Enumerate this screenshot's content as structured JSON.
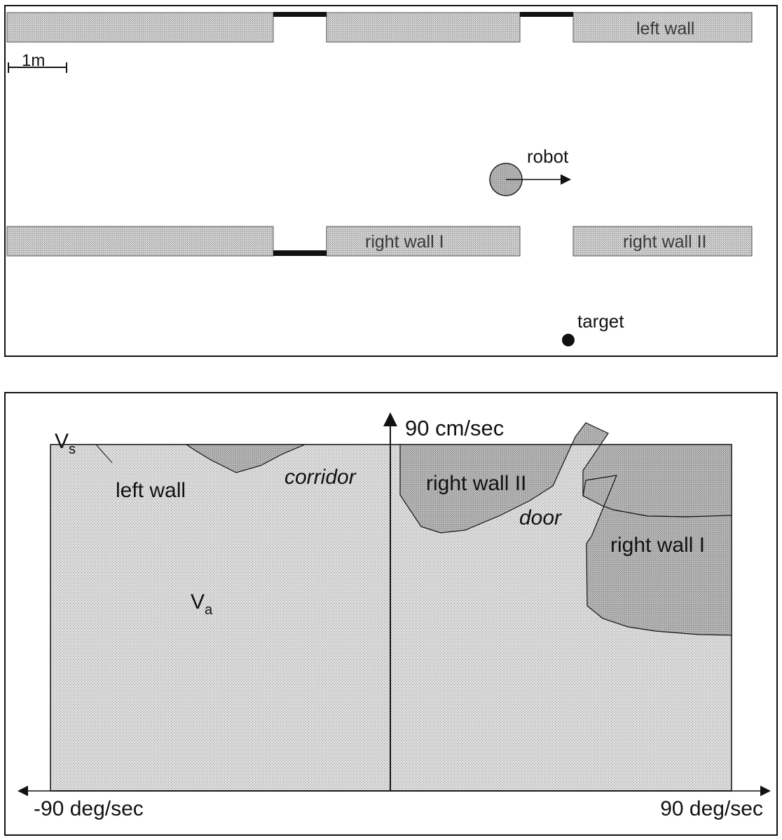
{
  "map": {
    "scale_label": "1m",
    "robot_label": "robot",
    "target_label": "target",
    "walls": {
      "left_wall": "left wall",
      "right_wall_1": "right wall I",
      "right_wall_2": "right wall II"
    }
  },
  "velocity_space": {
    "vs_label": "V",
    "vs_subscript": "s",
    "va_label": "V",
    "va_subscript": "a",
    "y_axis_label": "90 cm/sec",
    "x_left_label": "-90 deg/sec",
    "x_right_label": "90 deg/sec",
    "regions": {
      "left_wall": "left wall",
      "corridor": "corridor",
      "right_wall_2": "right wall II",
      "door": "door",
      "right_wall_1": "right wall I"
    }
  },
  "colors": {
    "wall_fill": "#c9c9c9",
    "admissible_fill": "#d9d9d9",
    "obstacle_fill": "#a8a8a8",
    "door_fill": "#000000",
    "line": "#111111"
  }
}
